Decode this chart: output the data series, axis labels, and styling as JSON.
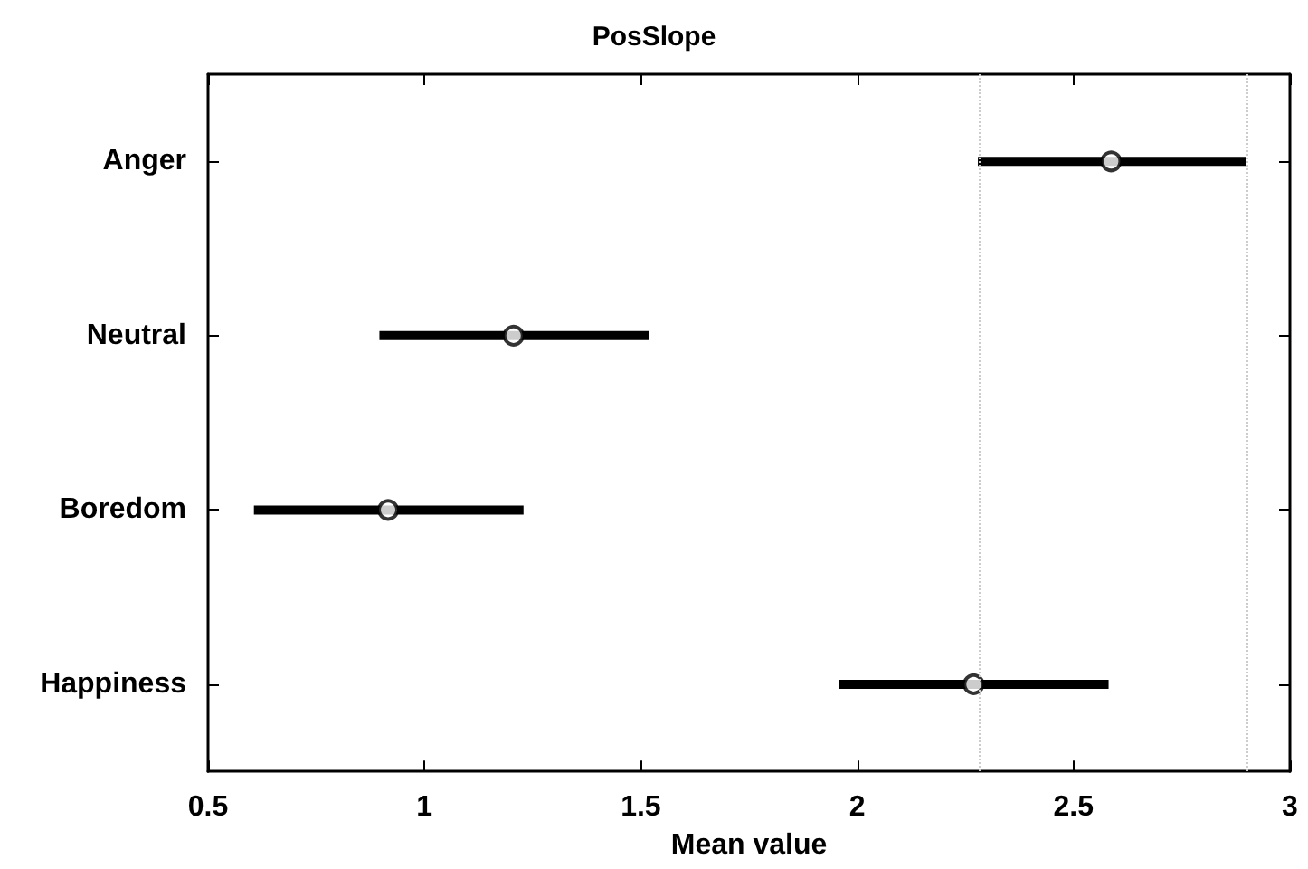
{
  "chart_data": {
    "type": "scatter",
    "title": "PosSlope",
    "xlabel": "Mean value",
    "orientation": "horizontal",
    "categories": [
      "Anger",
      "Neutral",
      "Boredom",
      "Happiness"
    ],
    "values": [
      2.587,
      1.206,
      0.916,
      2.269
    ],
    "errors": [
      [
        2.279,
        2.899
      ],
      [
        0.896,
        1.518
      ],
      [
        0.606,
        1.229
      ],
      [
        1.957,
        2.581
      ]
    ],
    "color": "#000000",
    "marker": "circle",
    "grid": false,
    "xlim": [
      0.5,
      3
    ],
    "xticks": [
      0.5,
      1,
      1.5,
      2,
      2.5,
      3
    ],
    "ref_lines": [
      {
        "axis": "x",
        "value": 2.279,
        "color": "#cccccc",
        "line_style": "dotted"
      },
      {
        "axis": "x",
        "value": 2.899,
        "color": "#cccccc",
        "line_style": "dotted"
      }
    ]
  }
}
